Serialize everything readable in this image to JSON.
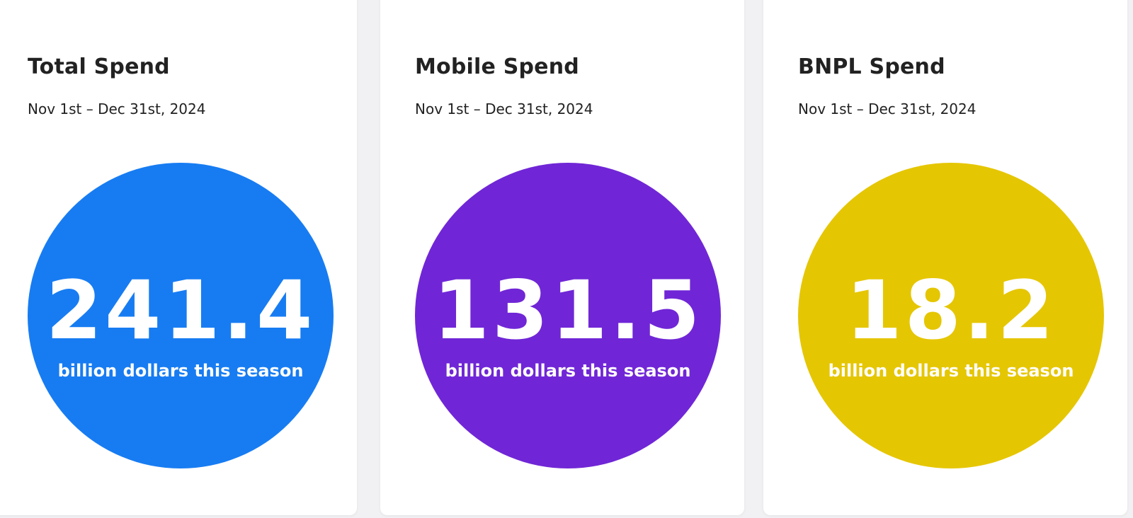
{
  "cards": [
    {
      "title": "Total Spend",
      "date_range": "Nov 1st – Dec 31st, 2024",
      "value": "241.4",
      "caption": "billion dollars this season",
      "color": "#177cf2"
    },
    {
      "title": "Mobile Spend",
      "date_range": "Nov 1st – Dec 31st, 2024",
      "value": "131.5",
      "caption": "billion dollars this season",
      "color": "#7026d6"
    },
    {
      "title": "BNPL Spend",
      "date_range": "Nov 1st – Dec 31st, 2024",
      "value": "18.2",
      "caption": "billion dollars this season",
      "color": "#e5c603"
    }
  ]
}
